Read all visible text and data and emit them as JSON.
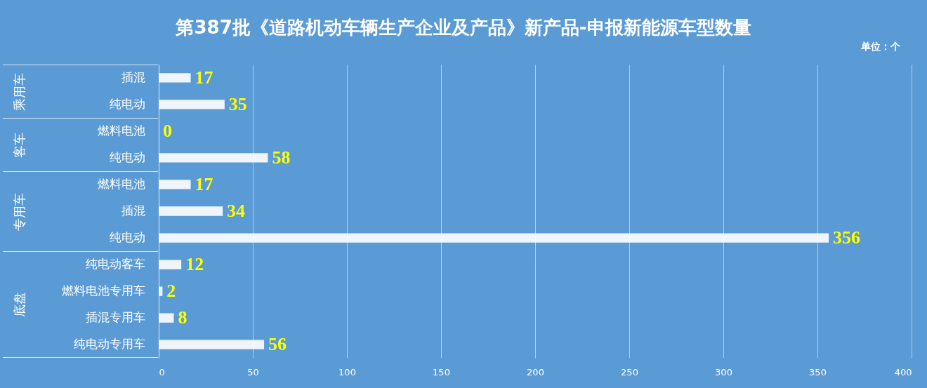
{
  "chart_data": {
    "type": "bar",
    "orientation": "horizontal",
    "title": "第387批《道路机动车辆生产企业及产品》新产品-申报新能源车型数量",
    "categories": [
      "插混",
      "纯电动",
      "燃料电池",
      "纯电动",
      "燃料电池",
      "插混",
      "纯电动",
      "纯电动客车",
      "燃料电池专用车",
      "插混专用车",
      "纯电动专用车"
    ],
    "values": [
      17,
      35,
      0,
      58,
      17,
      34,
      356,
      12,
      2,
      8,
      56
    ],
    "color": "#ffffff",
    "xlim": [
      0,
      400
    ],
    "xticks": [
      0,
      50,
      100,
      150,
      200,
      250,
      300,
      350,
      400
    ],
    "grid": "x",
    "data_labels": true,
    "annotations": [
      "单位：个",
      "乘用车",
      "客车",
      "专用车",
      "底盘"
    ]
  }
}
